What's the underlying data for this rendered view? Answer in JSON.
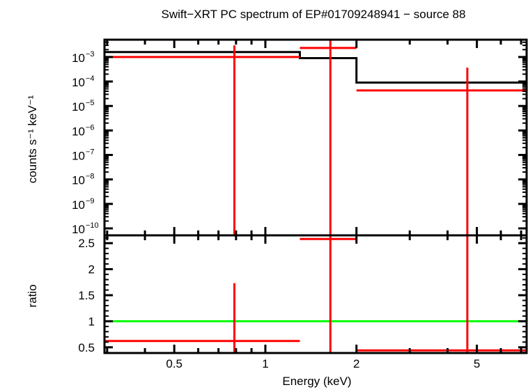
{
  "chart_data": [
    {
      "type": "line",
      "panel": "spectrum",
      "title": "Swift−XRT PC spectrum of EP#01709248941 − source 88",
      "ylabel": "counts s⁻¹ keV⁻¹",
      "xscale": "log",
      "yscale": "log",
      "xlim": [
        0.294,
        7.3
      ],
      "ylim": [
        5.2e-11,
        0.0051
      ],
      "yticks": [
        {
          "v": 0.001,
          "label": "10",
          "exp": "−3"
        },
        {
          "v": 0.0001,
          "label": "10",
          "exp": "−4"
        },
        {
          "v": 1e-05,
          "label": "10",
          "exp": "−5"
        },
        {
          "v": 1e-06,
          "label": "10",
          "exp": "−6"
        },
        {
          "v": 1e-07,
          "label": "10",
          "exp": "−7"
        },
        {
          "v": 1e-08,
          "label": "10",
          "exp": "−8"
        },
        {
          "v": 1e-09,
          "label": "10",
          "exp": "−9"
        },
        {
          "v": 1e-10,
          "label": "10",
          "exp": "−10"
        }
      ],
      "model": {
        "color": "#000000",
        "bins": [
          [
            0.294,
            1.3,
            0.0016
          ],
          [
            1.3,
            2.0,
            0.0009
          ],
          [
            2.0,
            7.3,
            9e-05
          ]
        ]
      },
      "data": {
        "color": "#ff0000",
        "points": [
          {
            "xlo": 0.294,
            "xhi": 1.3,
            "x": 0.79,
            "y": 0.001,
            "ylo": 1e-12,
            "yhi": 0.003
          },
          {
            "xlo": 1.3,
            "xhi": 2.0,
            "x": 1.64,
            "y": 0.00235,
            "ylo": 1e-12,
            "yhi": 0.01
          },
          {
            "xlo": 2.0,
            "xhi": 7.3,
            "x": 4.65,
            "y": 4.3e-05,
            "ylo": 1e-12,
            "yhi": 0.00037
          }
        ]
      }
    },
    {
      "type": "line",
      "panel": "ratio",
      "xlabel": "Energy (keV)",
      "ylabel": "ratio",
      "xscale": "log",
      "xlim": [
        0.294,
        7.3
      ],
      "ylim": [
        0.39,
        2.65
      ],
      "xticks": [
        {
          "v": 0.5,
          "label": "0.5"
        },
        {
          "v": 1,
          "label": "1"
        },
        {
          "v": 2,
          "label": "2"
        },
        {
          "v": 5,
          "label": "5"
        }
      ],
      "yticks": [
        {
          "v": 0.5,
          "label": "0.5"
        },
        {
          "v": 1,
          "label": "1"
        },
        {
          "v": 1.5,
          "label": "1.5"
        },
        {
          "v": 2,
          "label": "2"
        },
        {
          "v": 2.5,
          "label": "2.5"
        }
      ],
      "reference": {
        "y": 1,
        "color": "#00ff00"
      },
      "data": {
        "color": "#ff0000",
        "points": [
          {
            "xlo": 0.294,
            "xhi": 1.3,
            "x": 0.79,
            "y": 0.62,
            "ylo": 0.0,
            "yhi": 1.73
          },
          {
            "xlo": 1.3,
            "xhi": 2.0,
            "x": 1.64,
            "y": 2.58,
            "ylo": 0.0,
            "yhi": 5.0
          },
          {
            "xlo": 2.0,
            "xhi": 7.3,
            "x": 4.65,
            "y": 0.44,
            "ylo": 0.0,
            "yhi": 5.0
          }
        ]
      }
    }
  ]
}
